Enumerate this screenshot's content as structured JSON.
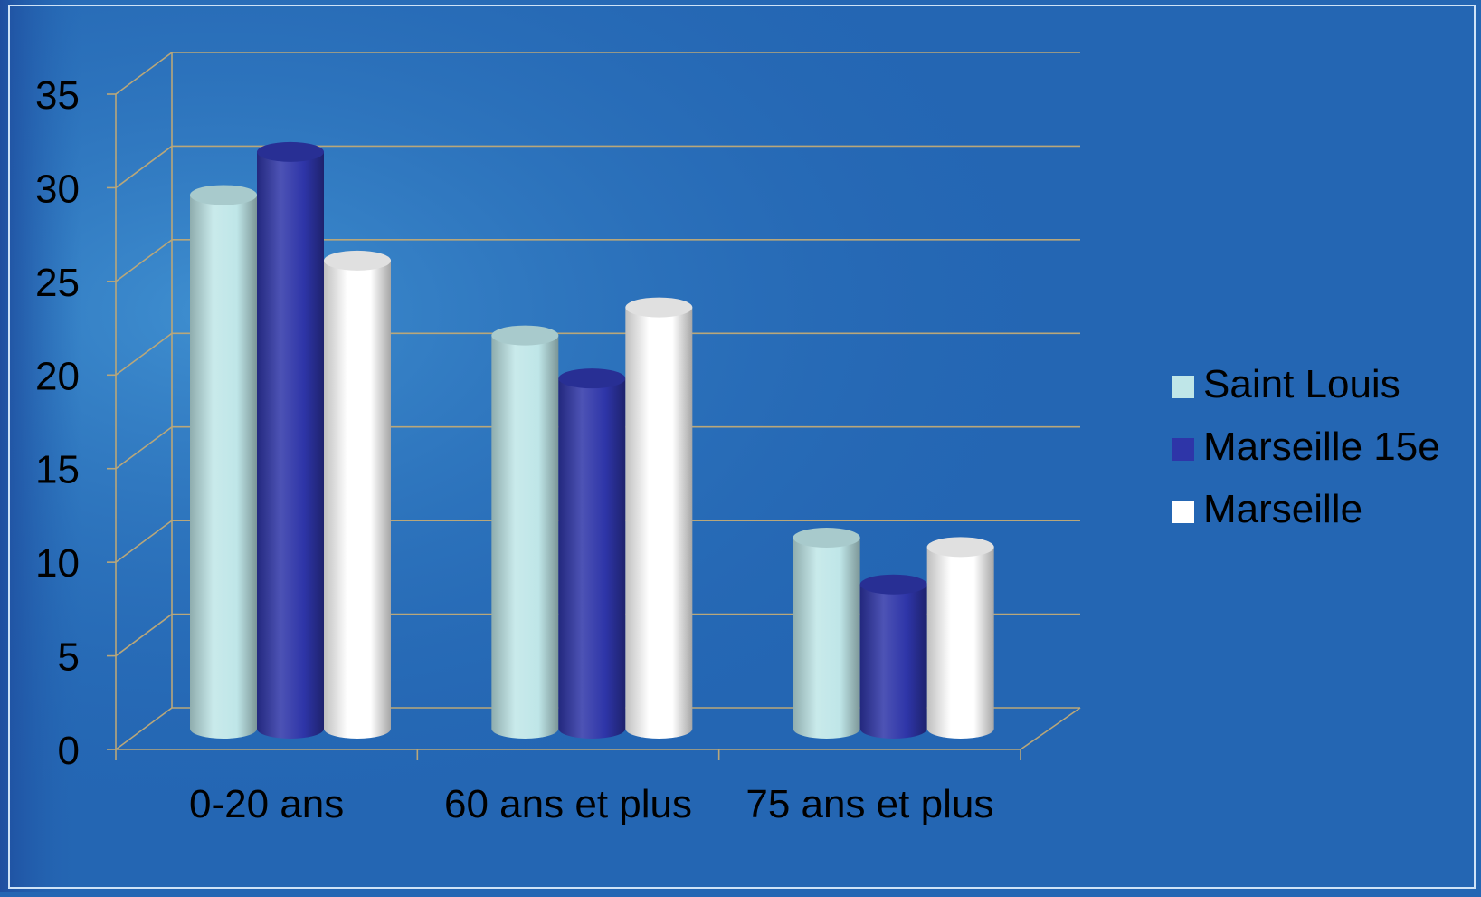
{
  "chart_data": {
    "type": "bar",
    "title": "",
    "xlabel": "",
    "ylabel": "",
    "categories": [
      "0-20 ans",
      "60 ans et plus",
      "75 ans et plus"
    ],
    "series": [
      {
        "name": "Saint Louis",
        "values": [
          28.5,
          21,
          10.2
        ],
        "color": "#bfe6e8"
      },
      {
        "name": "Marseille 15e",
        "values": [
          30.8,
          18.7,
          7.7
        ],
        "color": "#2e35a8"
      },
      {
        "name": "Marseille",
        "values": [
          25,
          22.5,
          9.7
        ],
        "color": "#ffffff"
      }
    ],
    "ylim": [
      0,
      35
    ],
    "yticks": [
      "0",
      "5",
      "10",
      "15",
      "20",
      "25",
      "30",
      "35"
    ],
    "grid": true,
    "legend": "right"
  }
}
